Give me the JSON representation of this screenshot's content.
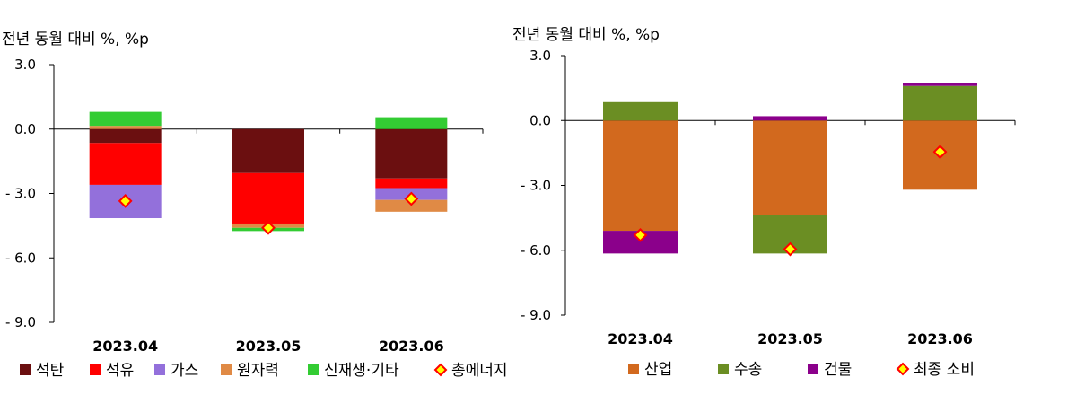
{
  "chart_data": [
    {
      "type": "bar",
      "stacked": true,
      "ylabel": "전년 동월 대비 %, %p",
      "ylim": [
        -9.0,
        3.0
      ],
      "yticks": [
        "3.0",
        "0.0",
        "- 3.0",
        "- 6.0",
        "- 9.0"
      ],
      "ytick_values": [
        3,
        0,
        -3,
        -6,
        -9
      ],
      "categories": [
        "2023.04",
        "2023.05",
        "2023.06"
      ],
      "series": [
        {
          "name": "석탄",
          "color": "#6b0f10",
          "values": [
            -0.65,
            -2.05,
            -2.3
          ]
        },
        {
          "name": "석유",
          "color": "#ff0000",
          "values": [
            -1.95,
            -2.35,
            -0.45
          ]
        },
        {
          "name": "가스",
          "color": "#9370db",
          "values": [
            -1.55,
            0,
            -0.55
          ]
        },
        {
          "name": "원자력",
          "color": "#e08a45",
          "values": [
            0.15,
            -0.2,
            -0.55
          ]
        },
        {
          "name": "신재생·기타",
          "color": "#33cc33",
          "values": [
            0.65,
            -0.15,
            0.55
          ]
        }
      ],
      "marker_series": {
        "name": "총에너지",
        "values": [
          -3.35,
          -4.6,
          -3.25
        ]
      },
      "legend_position": "bottom",
      "grid": false
    },
    {
      "type": "bar",
      "stacked": true,
      "ylabel": "전년 동월 대비 %, %p",
      "ylim": [
        -9.0,
        3.0
      ],
      "yticks": [
        "3.0",
        "0.0",
        "- 3.0",
        "- 6.0",
        "- 9.0"
      ],
      "ytick_values": [
        3,
        0,
        -3,
        -6,
        -9
      ],
      "categories": [
        "2023.04",
        "2023.05",
        "2023.06"
      ],
      "series": [
        {
          "name": "산업",
          "color": "#d2691e",
          "values": [
            -5.1,
            -4.35,
            -3.2
          ]
        },
        {
          "name": "수송",
          "color": "#6b8e23",
          "values": [
            0.85,
            -1.8,
            1.6
          ]
        },
        {
          "name": "건물",
          "color": "#8b008b",
          "values": [
            -1.05,
            0.2,
            0.15
          ]
        }
      ],
      "marker_series": {
        "name": "최종 소비",
        "values": [
          -5.3,
          -5.95,
          -1.45
        ]
      },
      "legend_position": "bottom",
      "grid": false
    }
  ]
}
